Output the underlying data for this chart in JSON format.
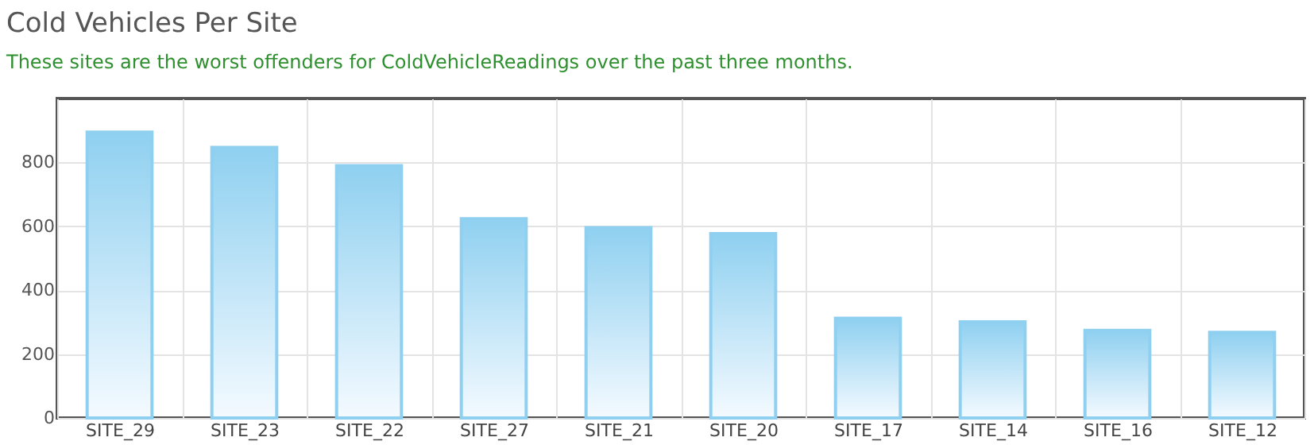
{
  "chart_data": {
    "type": "bar",
    "title": "Cold Vehicles Per Site",
    "subtitle": "These sites are the worst offenders for ColdVehicleReadings over the past three months.",
    "categories": [
      "SITE_29",
      "SITE_23",
      "SITE_22",
      "SITE_27",
      "SITE_21",
      "SITE_20",
      "SITE_17",
      "SITE_14",
      "SITE_16",
      "SITE_12"
    ],
    "values": [
      895,
      847,
      790,
      624,
      596,
      577,
      312,
      301,
      274,
      268
    ],
    "color": "#8fd0f0",
    "ylim": [
      0,
      1000
    ],
    "yticks": [
      0,
      200,
      400,
      600,
      800
    ],
    "grid": true
  }
}
